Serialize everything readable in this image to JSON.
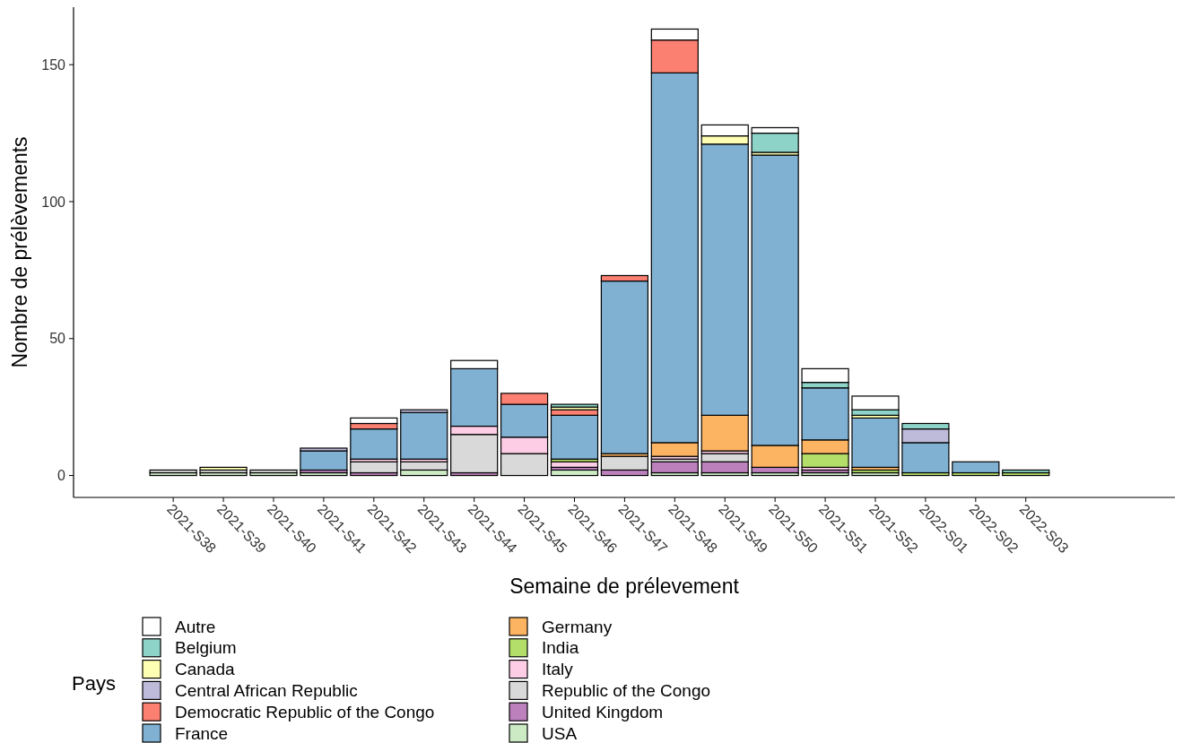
{
  "chart_data": {
    "type": "bar",
    "stacked": true,
    "xlabel": "Semaine de prélevement",
    "ylabel": "Nombre de prélèvements",
    "legend_title": "Pays",
    "legend": "bottom",
    "grid": false,
    "categories": [
      "2021-S38",
      "2021-S39",
      "2021-S40",
      "2021-S41",
      "2021-S42",
      "2021-S43",
      "2021-S44",
      "2021-S45",
      "2021-S46",
      "2021-S47",
      "2021-S48",
      "2021-S49",
      "2021-S50",
      "2021-S51",
      "2021-S52",
      "2022-S01",
      "2022-S02",
      "2022-S03"
    ],
    "ylim": [
      -8,
      171
    ],
    "yticks": [
      0,
      50,
      100,
      150
    ],
    "series": [
      {
        "name": "USA",
        "color": "#ccebc5",
        "values": [
          1,
          1,
          1,
          1,
          0,
          2,
          0,
          0,
          2,
          0,
          1,
          1,
          1,
          1,
          1,
          0,
          0,
          0
        ]
      },
      {
        "name": "United Kingdom",
        "color": "#bc80bd",
        "values": [
          0,
          0,
          0,
          1,
          1,
          0,
          1,
          0,
          1,
          2,
          4,
          4,
          2,
          1,
          0,
          0,
          0,
          0
        ]
      },
      {
        "name": "Republic of the Congo",
        "color": "#d9d9d9",
        "values": [
          1,
          1,
          1,
          0,
          4,
          3,
          14,
          8,
          0,
          5,
          1,
          3,
          0,
          0,
          0,
          0,
          0,
          0
        ]
      },
      {
        "name": "Italy",
        "color": "#fccde5",
        "values": [
          0,
          0,
          0,
          0,
          1,
          1,
          3,
          6,
          2,
          0,
          1,
          1,
          0,
          1,
          0,
          0,
          0,
          0
        ]
      },
      {
        "name": "India",
        "color": "#b3de69",
        "values": [
          0,
          0,
          0,
          0,
          0,
          0,
          0,
          0,
          1,
          0,
          0,
          0,
          0,
          5,
          1,
          1,
          1,
          1
        ]
      },
      {
        "name": "Germany",
        "color": "#fdb462",
        "values": [
          0,
          0,
          0,
          0,
          0,
          0,
          0,
          0,
          0,
          1,
          5,
          13,
          8,
          5,
          1,
          0,
          0,
          0
        ]
      },
      {
        "name": "France",
        "color": "#80b1d3",
        "values": [
          0,
          0,
          0,
          7,
          11,
          17,
          21,
          12,
          16,
          63,
          135,
          99,
          106,
          19,
          18,
          11,
          4,
          0
        ]
      },
      {
        "name": "Democratic Republic of the Congo",
        "color": "#fb8072",
        "values": [
          0,
          0,
          0,
          0,
          2,
          0,
          0,
          4,
          2,
          2,
          12,
          0,
          0,
          0,
          0,
          0,
          0,
          0
        ]
      },
      {
        "name": "Central African Republic",
        "color": "#bebada",
        "values": [
          0,
          0,
          0,
          1,
          0,
          1,
          0,
          0,
          0,
          0,
          0,
          0,
          0,
          0,
          0,
          5,
          0,
          0
        ]
      },
      {
        "name": "Canada",
        "color": "#ffffb3",
        "values": [
          0,
          1,
          0,
          0,
          0,
          0,
          0,
          0,
          1,
          0,
          0,
          3,
          1,
          0,
          1,
          0,
          0,
          0
        ]
      },
      {
        "name": "Belgium",
        "color": "#8dd3c7",
        "values": [
          0,
          0,
          0,
          0,
          0,
          0,
          0,
          0,
          1,
          0,
          0,
          0,
          7,
          2,
          2,
          2,
          0,
          1
        ]
      },
      {
        "name": "Autre",
        "color": "#ffffff",
        "values": [
          0,
          0,
          0,
          0,
          2,
          0,
          3,
          0,
          0,
          0,
          4,
          4,
          2,
          5,
          5,
          0,
          0,
          0
        ]
      }
    ]
  }
}
